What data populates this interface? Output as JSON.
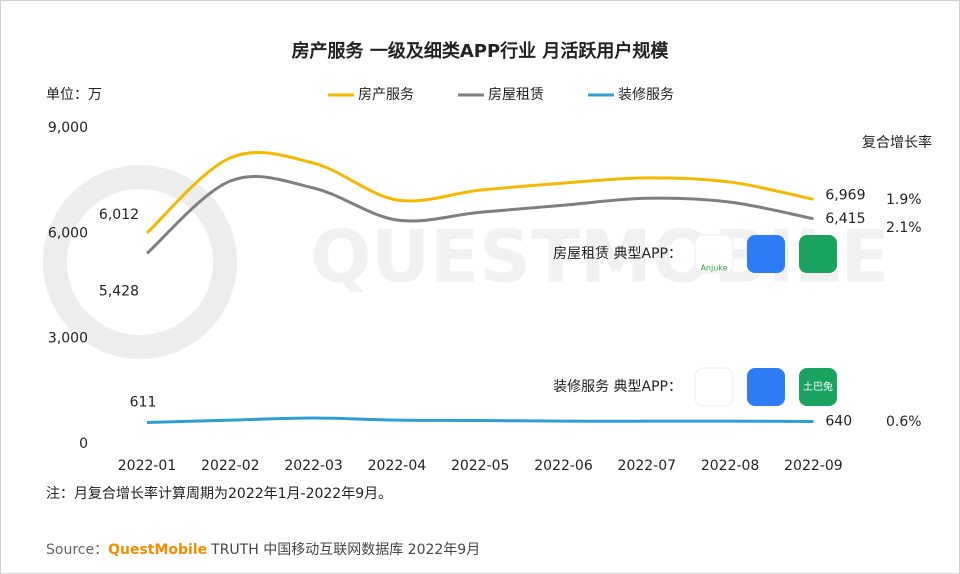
{
  "chart_data": {
    "type": "line",
    "title": "房产服务 一级及细类APP行业 月活跃用户规模",
    "unit_label": "单位：万",
    "watermark": "QUESTMOBILE",
    "categories": [
      "2022-01",
      "2022-02",
      "2022-03",
      "2022-04",
      "2022-05",
      "2022-06",
      "2022-07",
      "2022-08",
      "2022-09"
    ],
    "series": [
      {
        "name": "房产服务",
        "color": "#f5b800",
        "values": [
          6012,
          8150,
          8000,
          6950,
          7230,
          7430,
          7580,
          7460,
          6969
        ],
        "value_labels": [
          "6,012",
          null,
          null,
          null,
          null,
          null,
          null,
          null,
          "6,969"
        ],
        "growth": "1.9%"
      },
      {
        "name": "房屋租赁",
        "color": "#7f7f7f",
        "values": [
          5428,
          7490,
          7290,
          6380,
          6600,
          6800,
          7000,
          6890,
          6415
        ],
        "value_labels": [
          "5,428",
          null,
          null,
          null,
          null,
          null,
          null,
          null,
          "6,415"
        ],
        "growth": "2.1%"
      },
      {
        "name": "装修服务",
        "color": "#2e9fd6",
        "values": [
          611,
          680,
          740,
          680,
          670,
          650,
          650,
          650,
          640
        ],
        "value_labels": [
          "611",
          null,
          null,
          null,
          null,
          null,
          null,
          null,
          "640"
        ],
        "growth": "0.6%"
      }
    ],
    "growth_title": "复合增长率",
    "ylim": [
      0,
      9000
    ],
    "yticks": [
      0,
      {
        "value": 3000,
        "label": "3,000"
      },
      {
        "value": 6000,
        "label": "6,000"
      },
      {
        "value": 9000,
        "label": "9,000"
      }
    ],
    "app_groups": [
      {
        "label": "房屋租赁 典型APP：",
        "apps": [
          "Anjuke",
          "",
          ""
        ]
      },
      {
        "label": "装修服务 典型APP：",
        "apps": [
          "",
          "",
          "土巴兔"
        ]
      }
    ],
    "note": "注：月复合增长率计算周期为2022年1月-2022年9月。",
    "source_prefix": "Source：",
    "source_brand": "QuestMobile",
    "source_text": "TRUTH 中国移动互联网数据库 2022年9月"
  }
}
